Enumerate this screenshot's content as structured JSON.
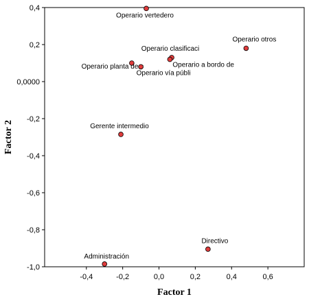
{
  "chart_data": {
    "type": "scatter",
    "title": "",
    "xlabel": "Factor 1",
    "ylabel": "Factor 2",
    "xlim": [
      -0.63,
      0.8
    ],
    "ylim": [
      -1.0,
      0.4
    ],
    "x_ticks": [
      -0.4,
      -0.2,
      0.0,
      0.2,
      0.4,
      0.6
    ],
    "x_tick_labels": [
      "-0,4",
      "-0,2",
      "0,0",
      "0,2",
      "0,4",
      "0,6"
    ],
    "y_ticks": [
      0.4,
      0.2,
      0.0,
      -0.2,
      -0.4,
      -0.6,
      -0.8,
      -1.0
    ],
    "y_tick_labels": [
      "0,4",
      "0,2",
      "0,0000",
      "-0,2",
      "-0,4",
      "-0,6",
      "-0,8",
      "-1,0"
    ],
    "grid": false,
    "marker_color": "#e03c3c",
    "points": [
      {
        "label": "Operario vertedero",
        "x": -0.07,
        "y": 0.395
      },
      {
        "label": "Operario otros",
        "x": 0.48,
        "y": 0.18
      },
      {
        "label": "Operario clasificaci",
        "x": 0.07,
        "y": 0.13
      },
      {
        "label": "Operario a bordo de",
        "x": 0.06,
        "y": 0.12
      },
      {
        "label": "Operario planta de c",
        "x": -0.15,
        "y": 0.1
      },
      {
        "label": "Operario vía públi",
        "x": -0.1,
        "y": 0.08
      },
      {
        "label": "Gerente intermedio",
        "x": -0.21,
        "y": -0.285
      },
      {
        "label": "Directivo",
        "x": 0.27,
        "y": -0.905
      },
      {
        "label": "Administración",
        "x": -0.3,
        "y": -0.985
      }
    ]
  }
}
